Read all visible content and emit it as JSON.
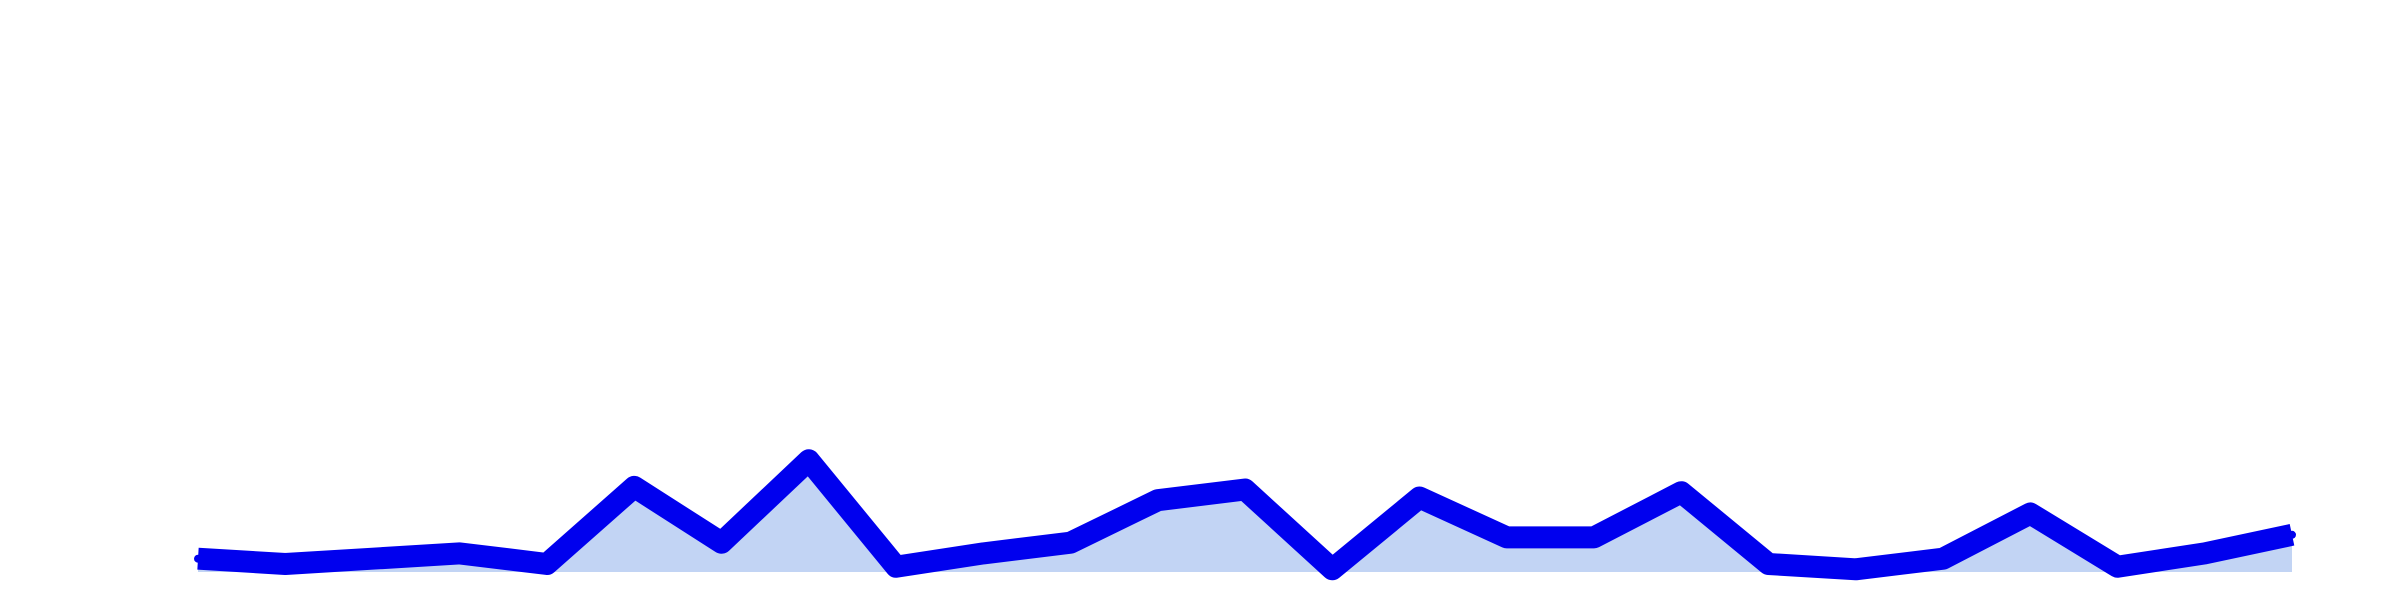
{
  "chart_data": {
    "type": "area",
    "title": "",
    "xlabel": "",
    "ylabel": "",
    "grid": false,
    "legend": "none",
    "ylim": [
      0,
      100
    ],
    "x": [
      1,
      2,
      3,
      4,
      5,
      6,
      7,
      8,
      9,
      10,
      11,
      12,
      13,
      14,
      15,
      16,
      17,
      18,
      19,
      20,
      21,
      22,
      23,
      24,
      25
    ],
    "series": [
      {
        "values": [
          2.5,
          1.5,
          2.5,
          3.5,
          1.5,
          16,
          5.5,
          21,
          1,
          3.5,
          5.5,
          13.5,
          15.5,
          0.5,
          14,
          6.5,
          6.5,
          15,
          1.5,
          0.5,
          2.5,
          11,
          1,
          3.5,
          7
        ]
      }
    ],
    "colors": {
      "line": "#0000ee",
      "fill": "#c2d4f4",
      "background": "#ffffff"
    }
  }
}
